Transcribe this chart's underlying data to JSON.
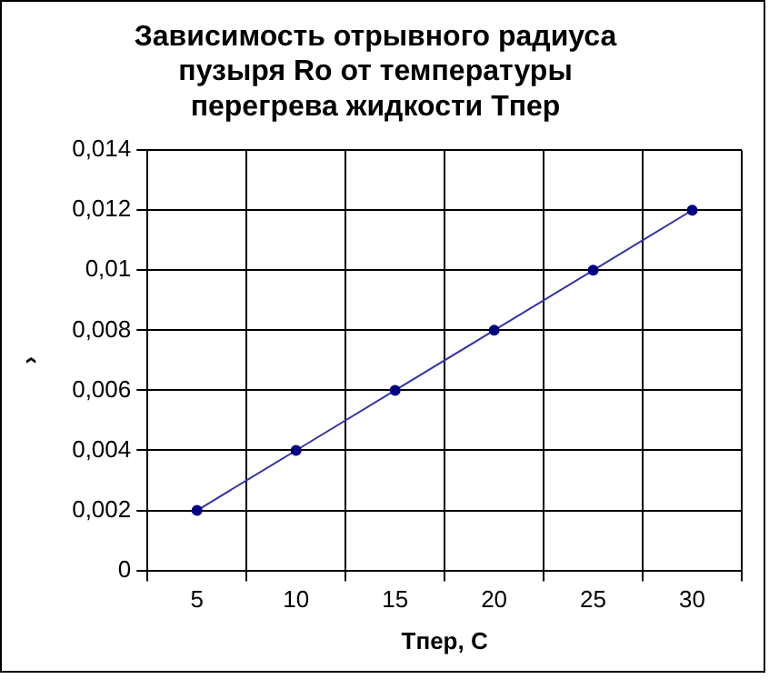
{
  "chart_data": {
    "type": "line",
    "title": "Зависимость отрывного радиуса пузыря Ro от температуры перегрева жидкости Tпер",
    "xlabel": "Tпер, С",
    "ylabel": "›",
    "categories": [
      "5",
      "10",
      "15",
      "20",
      "25",
      "30"
    ],
    "series": [
      {
        "color": "#3535a8",
        "values": [
          0.002,
          0.004,
          0.006,
          0.008,
          0.01,
          0.012
        ]
      }
    ],
    "ylim": [
      0,
      0.014
    ],
    "yticks": [
      {
        "value": 0,
        "label": "0"
      },
      {
        "value": 0.002,
        "label": "0,002"
      },
      {
        "value": 0.004,
        "label": "0,004"
      },
      {
        "value": 0.006,
        "label": "0,006"
      },
      {
        "value": 0.008,
        "label": "0,008"
      },
      {
        "value": 0.01,
        "label": "0,01"
      },
      {
        "value": 0.012,
        "label": "0,012"
      },
      {
        "value": 0.014,
        "label": "0,014"
      }
    ],
    "grid": true,
    "legend": false,
    "marker": "circle",
    "line_style": "solid"
  }
}
